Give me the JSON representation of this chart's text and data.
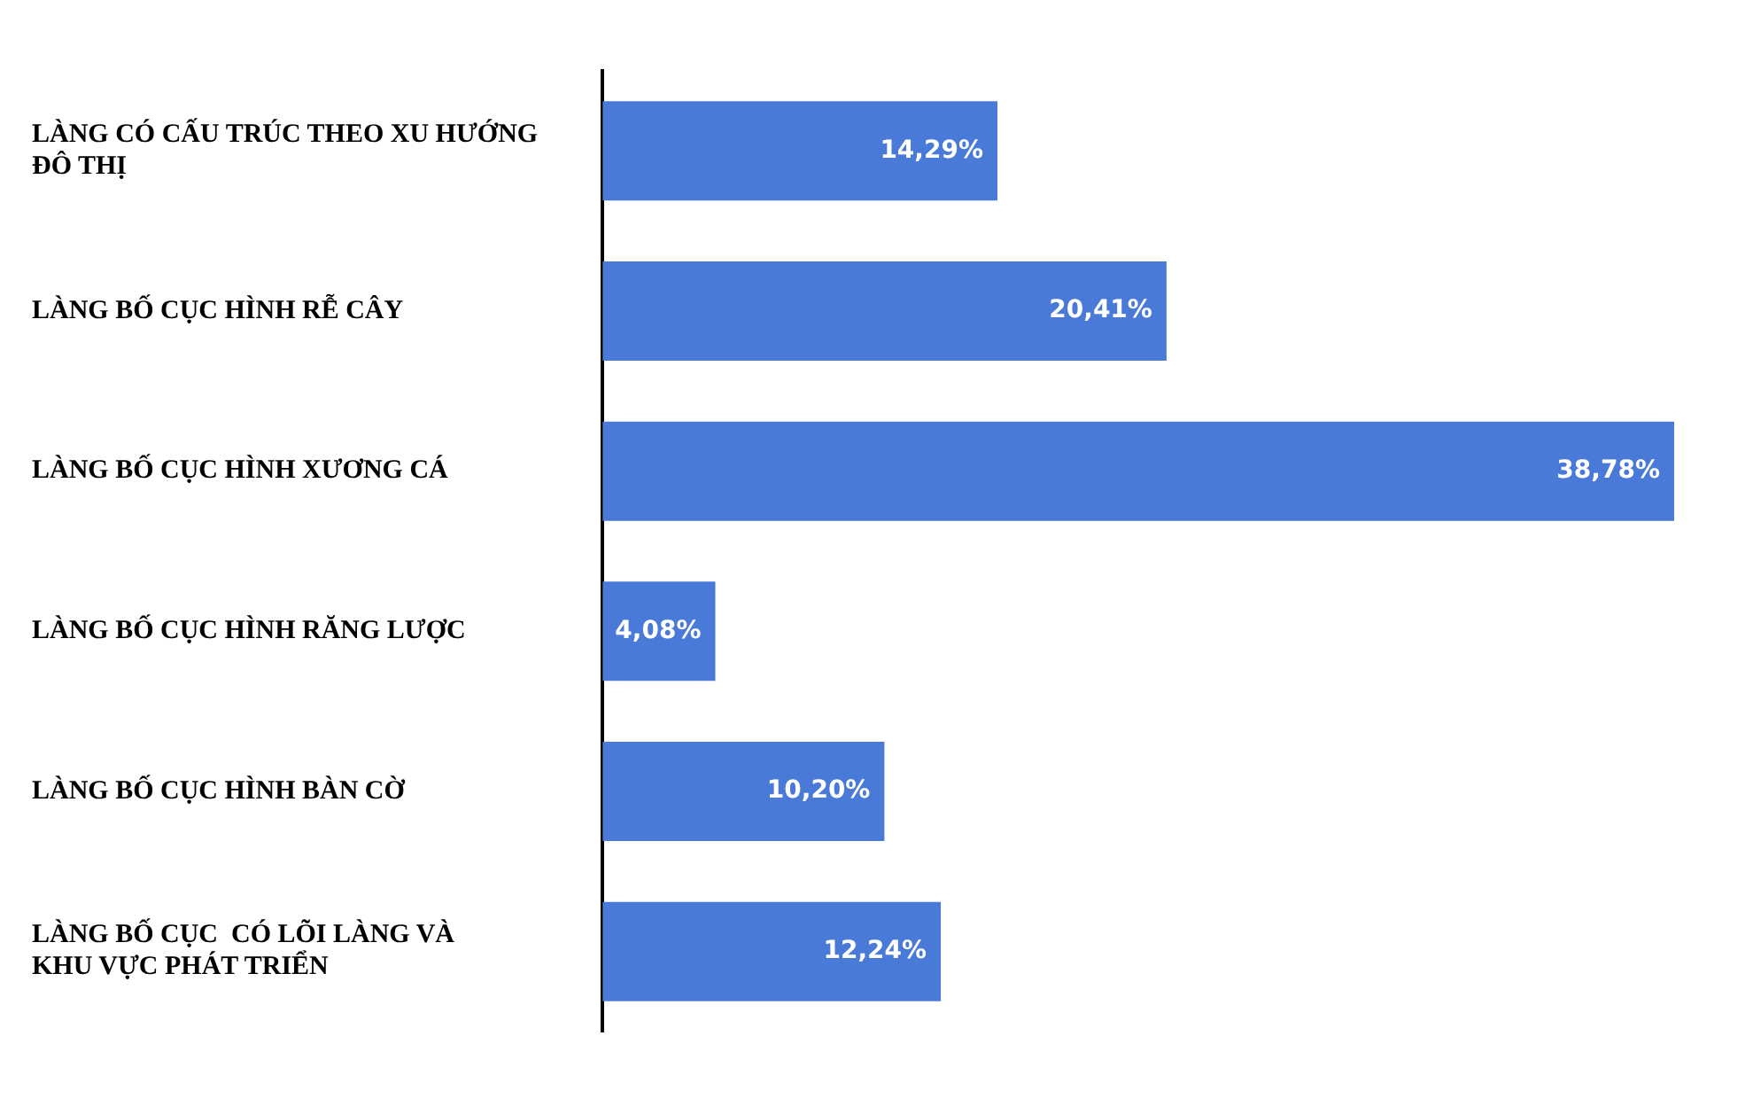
{
  "chart_data": {
    "type": "bar",
    "orientation": "horizontal",
    "categories": [
      "LÀNG CÓ CẤU TRÚC THEO XU HƯỚNG ĐÔ THỊ",
      "LÀNG BỐ CỤC HÌNH RỄ CÂY",
      "LÀNG BỐ CỤC HÌNH XƯƠNG CÁ",
      "LÀNG BỐ CỤC HÌNH RĂNG LƯỢC",
      "LÀNG BỐ CỤC HÌNH BÀN CỜ",
      "LÀNG BỐ CỤC  CÓ LÕI LÀNG VÀ KHU VỰC PHÁT TRIỂN"
    ],
    "values": [
      14.29,
      20.41,
      38.78,
      4.08,
      10.2,
      12.24
    ],
    "value_labels": [
      "14,29%",
      "20,41%",
      "38,78%",
      "4,08%",
      "10,20%",
      "12,24%"
    ],
    "color": "#4a7ad8",
    "legend": false
  }
}
